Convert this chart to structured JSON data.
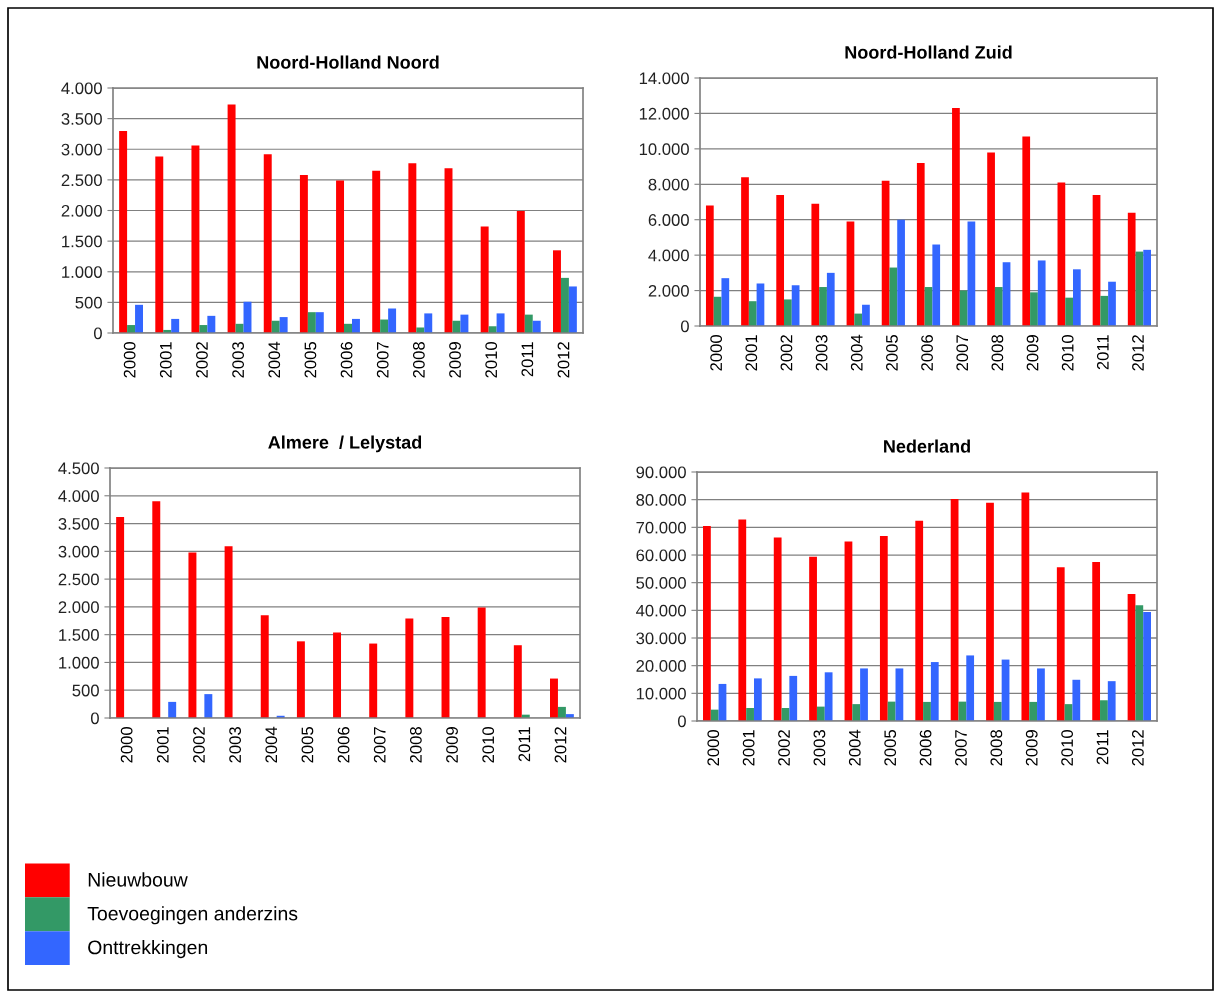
{
  "chart_data": [
    {
      "type": "bar",
      "title": "Noord-Holland Noord",
      "categories": [
        "2000",
        "2001",
        "2002",
        "2003",
        "2004",
        "2005",
        "2006",
        "2007",
        "2008",
        "2009",
        "2010",
        "2011",
        "2012"
      ],
      "series": [
        {
          "name": "Nieuwbouw",
          "color": "#ff0000",
          "values": [
            3300,
            2880,
            3060,
            3730,
            2920,
            2580,
            2490,
            2650,
            2770,
            2690,
            1740,
            1990,
            1350
          ]
        },
        {
          "name": "Toevoegingen anderzins",
          "color": "#339966",
          "values": [
            130,
            50,
            130,
            150,
            200,
            340,
            150,
            220,
            90,
            200,
            110,
            300,
            900
          ]
        },
        {
          "name": "Onttrekkingen",
          "color": "#3366ff",
          "values": [
            460,
            230,
            280,
            510,
            260,
            340,
            230,
            400,
            320,
            300,
            320,
            200,
            760
          ]
        }
      ],
      "ylim": [
        0,
        4000
      ],
      "yticks": [
        0,
        500,
        {
          "value": 1000,
          "label": "1.000"
        },
        {
          "value": 1500,
          "label": "1.500"
        },
        {
          "value": 2000,
          "label": "2.000"
        },
        {
          "value": 2500,
          "label": "2.500"
        },
        {
          "value": 3000,
          "label": "3.000"
        },
        {
          "value": 3500,
          "label": "3.500"
        },
        {
          "value": 4000,
          "label": "4.000"
        }
      ],
      "grid": "y",
      "legend": "bottom left"
    },
    {
      "type": "bar",
      "title": "Noord-Holland Zuid",
      "categories": [
        "2000",
        "2001",
        "2002",
        "2003",
        "2004",
        "2005",
        "2006",
        "2007",
        "2008",
        "2009",
        "2010",
        "2011",
        "2012"
      ],
      "series": [
        {
          "name": "Nieuwbouw",
          "color": "#ff0000",
          "values": [
            6800,
            8400,
            7400,
            6900,
            5900,
            8200,
            9200,
            12300,
            9800,
            10700,
            8100,
            7400,
            6400
          ]
        },
        {
          "name": "Toevoegingen anderzins",
          "color": "#339966",
          "values": [
            1650,
            1400,
            1500,
            2200,
            700,
            3300,
            2200,
            2000,
            2200,
            1900,
            1600,
            1700,
            4200
          ]
        },
        {
          "name": "Onttrekkingen",
          "color": "#3366ff",
          "values": [
            2700,
            2400,
            2300,
            3000,
            1200,
            6000,
            4600,
            5900,
            3600,
            3700,
            3200,
            2500,
            4300
          ]
        }
      ],
      "ylim": [
        0,
        14000
      ],
      "yticks": [
        0,
        {
          "value": 2000,
          "label": "2.000"
        },
        {
          "value": 4000,
          "label": "4.000"
        },
        {
          "value": 6000,
          "label": "6.000"
        },
        {
          "value": 8000,
          "label": "8.000"
        },
        {
          "value": 10000,
          "label": "10.000"
        },
        {
          "value": 12000,
          "label": "12.000"
        },
        {
          "value": 14000,
          "label": "14.000"
        }
      ],
      "grid": "y"
    },
    {
      "type": "bar",
      "title": "Almere  / Lelystad",
      "categories": [
        "2000",
        "2001",
        "2002",
        "2003",
        "2004",
        "2005",
        "2006",
        "2007",
        "2008",
        "2009",
        "2010",
        "2011",
        "2012"
      ],
      "series": [
        {
          "name": "Nieuwbouw",
          "color": "#ff0000",
          "values": [
            3620,
            3900,
            2980,
            3090,
            1850,
            1380,
            1540,
            1340,
            1790,
            1820,
            1990,
            1310,
            710
          ]
        },
        {
          "name": "Toevoegingen anderzins",
          "color": "#339966",
          "values": [
            0,
            0,
            0,
            0,
            0,
            0,
            0,
            0,
            0,
            0,
            0,
            60,
            200
          ]
        },
        {
          "name": "Onttrekkingen",
          "color": "#3366ff",
          "values": [
            0,
            290,
            430,
            0,
            40,
            0,
            0,
            0,
            0,
            0,
            0,
            0,
            70
          ]
        }
      ],
      "ylim": [
        0,
        4500
      ],
      "yticks": [
        0,
        500,
        {
          "value": 1000,
          "label": "1.000"
        },
        {
          "value": 1500,
          "label": "1.500"
        },
        {
          "value": 2000,
          "label": "2.000"
        },
        {
          "value": 2500,
          "label": "2.500"
        },
        {
          "value": 3000,
          "label": "3.000"
        },
        {
          "value": 3500,
          "label": "3.500"
        },
        {
          "value": 4000,
          "label": "4.000"
        },
        {
          "value": 4500,
          "label": "4.500"
        }
      ],
      "grid": "y"
    },
    {
      "type": "bar",
      "title": "Nederland",
      "categories": [
        "2000",
        "2001",
        "2002",
        "2003",
        "2004",
        "2005",
        "2006",
        "2007",
        "2008",
        "2009",
        "2010",
        "2011",
        "2012"
      ],
      "series": [
        {
          "name": "Nieuwbouw",
          "color": "#ff0000",
          "values": [
            70500,
            72800,
            66300,
            59400,
            64900,
            66900,
            72400,
            80200,
            78900,
            82600,
            55600,
            57500,
            45900
          ]
        },
        {
          "name": "Toevoegingen anderzins",
          "color": "#339966",
          "values": [
            4100,
            4700,
            4700,
            5200,
            6100,
            7000,
            6900,
            7000,
            6900,
            6900,
            6100,
            7500,
            41800
          ]
        },
        {
          "name": "Onttrekkingen",
          "color": "#3366ff",
          "values": [
            13400,
            15400,
            16300,
            17600,
            19000,
            19000,
            21300,
            23700,
            22200,
            19000,
            14900,
            14400,
            39400
          ]
        }
      ],
      "ylim": [
        0,
        90000
      ],
      "yticks": [
        0,
        {
          "value": 10000,
          "label": "10.000"
        },
        {
          "value": 20000,
          "label": "20.000"
        },
        {
          "value": 30000,
          "label": "30.000"
        },
        {
          "value": 40000,
          "label": "40.000"
        },
        {
          "value": 50000,
          "label": "50.000"
        },
        {
          "value": 60000,
          "label": "60.000"
        },
        {
          "value": 70000,
          "label": "70.000"
        },
        {
          "value": 80000,
          "label": "80.000"
        },
        {
          "value": 90000,
          "label": "90.000"
        }
      ],
      "grid": "y"
    }
  ]
}
